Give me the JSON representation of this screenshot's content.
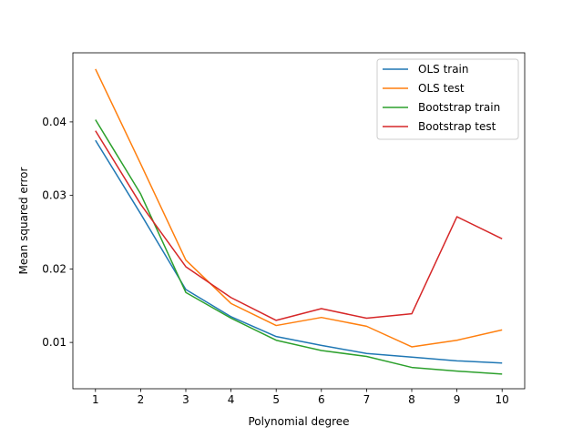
{
  "chart_data": {
    "type": "line",
    "title": "",
    "xlabel": "Polynomial degree",
    "ylabel": "Mean squared error",
    "x": [
      1,
      2,
      3,
      4,
      5,
      6,
      7,
      8,
      9,
      10
    ],
    "xlim": [
      0.5,
      10.5
    ],
    "ylim": [
      0.0037,
      0.0494
    ],
    "xticks": [
      1,
      2,
      3,
      4,
      5,
      6,
      7,
      8,
      9,
      10
    ],
    "yticks": [
      0.01,
      0.02,
      0.03,
      0.04
    ],
    "ytick_labels": [
      "0.01",
      "0.02",
      "0.03",
      "0.04"
    ],
    "grid": false,
    "legend_position": "top-right",
    "series": [
      {
        "name": "OLS train",
        "color": "#1f77b4",
        "values": [
          0.0375,
          0.0275,
          0.0172,
          0.0135,
          0.0108,
          0.0096,
          0.0085,
          0.008,
          0.0075,
          0.0072
        ]
      },
      {
        "name": "OLS test",
        "color": "#ff7f0e",
        "values": [
          0.0472,
          0.0343,
          0.0212,
          0.0153,
          0.0123,
          0.0134,
          0.0122,
          0.0094,
          0.0103,
          0.0117
        ]
      },
      {
        "name": "Bootstrap train",
        "color": "#2ca02c",
        "values": [
          0.0403,
          0.0302,
          0.0168,
          0.0133,
          0.0103,
          0.0089,
          0.0081,
          0.0066,
          0.0061,
          0.0057
        ]
      },
      {
        "name": "Bootstrap test",
        "color": "#d62728",
        "values": [
          0.0388,
          0.0288,
          0.0203,
          0.0161,
          0.013,
          0.0146,
          0.0133,
          0.0139,
          0.0271,
          0.0241
        ]
      }
    ]
  }
}
